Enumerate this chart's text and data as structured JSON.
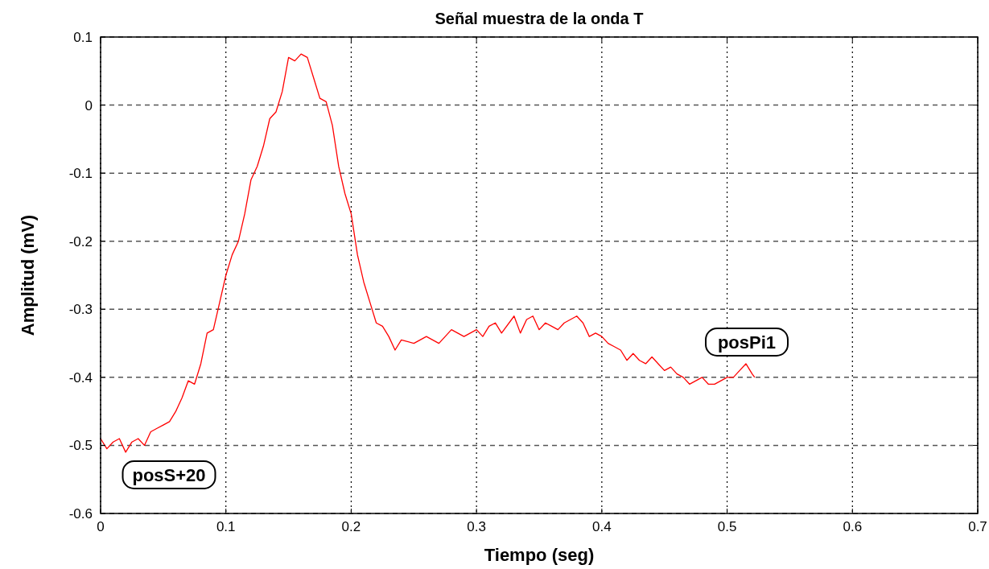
{
  "chart_data": {
    "type": "line",
    "title": "Señal muestra de la onda T",
    "xlabel": "Tiempo (seg)",
    "ylabel": "Amplitud (mV)",
    "annotations": [
      "posS+20",
      "posPi1"
    ],
    "xlim": [
      0,
      0.7
    ],
    "xticks": [
      0,
      0.1,
      0.2,
      0.3,
      0.4,
      0.5,
      0.6,
      0.7
    ],
    "ylim": [
      -0.6,
      0.1
    ],
    "yticks": [
      -0.6,
      -0.5,
      -0.4,
      -0.3,
      -0.2,
      -0.1,
      0,
      0.1
    ],
    "grid": true,
    "line_style": "solid",
    "series": [
      {
        "color": "#ff0000",
        "x": [
          0,
          0.005,
          0.01,
          0.015,
          0.02,
          0.025,
          0.03,
          0.035,
          0.04,
          0.045,
          0.05,
          0.055,
          0.06,
          0.065,
          0.07,
          0.075,
          0.08,
          0.085,
          0.09,
          0.095,
          0.1,
          0.105,
          0.11,
          0.115,
          0.12,
          0.125,
          0.13,
          0.135,
          0.14,
          0.145,
          0.15,
          0.155,
          0.16,
          0.165,
          0.17,
          0.175,
          0.18,
          0.185,
          0.19,
          0.195,
          0.2,
          0.205,
          0.21,
          0.215,
          0.22,
          0.225,
          0.23,
          0.235,
          0.24,
          0.25,
          0.26,
          0.27,
          0.28,
          0.29,
          0.3,
          0.305,
          0.31,
          0.315,
          0.32,
          0.33,
          0.335,
          0.34,
          0.345,
          0.35,
          0.355,
          0.36,
          0.365,
          0.37,
          0.38,
          0.385,
          0.39,
          0.395,
          0.4,
          0.405,
          0.41,
          0.415,
          0.42,
          0.425,
          0.43,
          0.435,
          0.44,
          0.445,
          0.45,
          0.455,
          0.46,
          0.465,
          0.47,
          0.475,
          0.48,
          0.485,
          0.49,
          0.495,
          0.5,
          0.505,
          0.51,
          0.515,
          0.52,
          0.522
        ],
        "values": [
          -0.49,
          -0.505,
          -0.495,
          -0.49,
          -0.51,
          -0.495,
          -0.49,
          -0.5,
          -0.48,
          -0.475,
          -0.47,
          -0.465,
          -0.45,
          -0.43,
          -0.405,
          -0.41,
          -0.38,
          -0.335,
          -0.33,
          -0.29,
          -0.25,
          -0.22,
          -0.2,
          -0.16,
          -0.11,
          -0.09,
          -0.06,
          -0.02,
          -0.01,
          0.02,
          0.07,
          0.065,
          0.075,
          0.07,
          0.04,
          0.01,
          0.005,
          -0.03,
          -0.09,
          -0.13,
          -0.16,
          -0.22,
          -0.26,
          -0.29,
          -0.32,
          -0.325,
          -0.34,
          -0.36,
          -0.345,
          -0.35,
          -0.34,
          -0.35,
          -0.33,
          -0.34,
          -0.33,
          -0.34,
          -0.325,
          -0.32,
          -0.335,
          -0.31,
          -0.335,
          -0.315,
          -0.31,
          -0.33,
          -0.32,
          -0.325,
          -0.33,
          -0.32,
          -0.31,
          -0.32,
          -0.34,
          -0.335,
          -0.34,
          -0.35,
          -0.355,
          -0.36,
          -0.375,
          -0.365,
          -0.375,
          -0.38,
          -0.37,
          -0.38,
          -0.39,
          -0.385,
          -0.395,
          -0.4,
          -0.41,
          -0.405,
          -0.4,
          -0.41,
          -0.41,
          -0.405,
          -0.4,
          -0.4,
          -0.39,
          -0.38,
          -0.395,
          -0.4
        ]
      }
    ]
  }
}
